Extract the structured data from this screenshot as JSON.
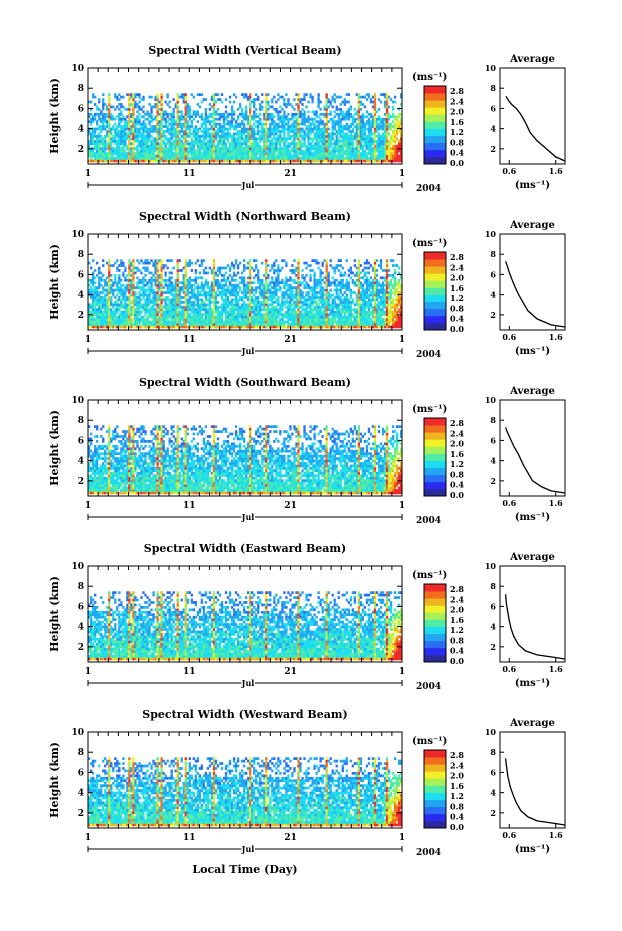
{
  "figure": {
    "xaxis_common_label": "Local Time (Day)",
    "month_label": "Jul",
    "year_label": "2004",
    "x_tick_labels": [
      "1",
      "11",
      "21",
      "1"
    ],
    "ylabel": "Height (km)",
    "y_tick_labels": [
      "2",
      "4",
      "6",
      "8",
      "10"
    ],
    "colorbar_unit": "(ms⁻¹)",
    "colorbar_tick_labels": [
      "0.0",
      "0.4",
      "0.8",
      "1.2",
      "1.6",
      "2.0",
      "2.4",
      "2.8"
    ],
    "avg_title": "Average",
    "avg_xlabel": "(ms⁻¹)",
    "avg_x_tick_labels": [
      "0.6",
      "1.6"
    ],
    "avg_y_tick_labels": [
      "2",
      "4",
      "6",
      "8",
      "10"
    ],
    "colors": {
      "colormap": [
        "#2a2a9a",
        "#2a2af0",
        "#2a6ef5",
        "#22a6f0",
        "#1edcf0",
        "#50eca6",
        "#a6f05a",
        "#f0f028",
        "#f0b41e",
        "#f06e1e",
        "#f02a2a"
      ],
      "line": "#000000"
    }
  },
  "chart_data": [
    {
      "type": "heatmap",
      "title": "Spectral Width (Vertical Beam)",
      "colorbar_range": [
        0.0,
        2.8
      ],
      "avg_profile": {
        "type": "line",
        "x": [
          1.8,
          1.6,
          1.4,
          1.2,
          1.05,
          0.95,
          0.85,
          0.75,
          0.65,
          0.58,
          0.53
        ],
        "y": [
          0.8,
          1.2,
          2.0,
          2.8,
          3.6,
          4.6,
          5.4,
          6.0,
          6.4,
          6.8,
          7.2
        ],
        "xlim": [
          0.4,
          1.8
        ],
        "ylim": [
          0.5,
          10
        ]
      }
    },
    {
      "type": "heatmap",
      "title": "Spectral Width (Northward Beam)",
      "colorbar_range": [
        0.0,
        2.8
      ],
      "avg_profile": {
        "type": "line",
        "x": [
          1.8,
          1.5,
          1.2,
          1.0,
          0.9,
          0.8,
          0.72,
          0.65,
          0.6,
          0.56,
          0.52
        ],
        "y": [
          0.8,
          1.0,
          1.6,
          2.4,
          3.2,
          4.0,
          4.8,
          5.6,
          6.2,
          6.8,
          7.3
        ],
        "xlim": [
          0.4,
          1.8
        ],
        "ylim": [
          0.5,
          10
        ]
      }
    },
    {
      "type": "heatmap",
      "title": "Spectral Width (Southward Beam)",
      "colorbar_range": [
        0.0,
        2.8
      ],
      "avg_profile": {
        "type": "line",
        "x": [
          1.8,
          1.5,
          1.3,
          1.1,
          1.0,
          0.9,
          0.8,
          0.7,
          0.62,
          0.56,
          0.52
        ],
        "y": [
          0.8,
          1.0,
          1.4,
          2.0,
          2.8,
          3.6,
          4.6,
          5.4,
          6.2,
          6.8,
          7.3
        ],
        "xlim": [
          0.4,
          1.8
        ],
        "ylim": [
          0.5,
          10
        ]
      }
    },
    {
      "type": "heatmap",
      "title": "Spectral Width (Eastward Beam)",
      "colorbar_range": [
        0.0,
        2.8
      ],
      "avg_profile": {
        "type": "line",
        "x": [
          1.8,
          1.5,
          1.2,
          0.95,
          0.8,
          0.7,
          0.64,
          0.6,
          0.57,
          0.54,
          0.52
        ],
        "y": [
          0.8,
          1.0,
          1.2,
          1.6,
          2.2,
          3.0,
          3.8,
          4.6,
          5.4,
          6.2,
          7.2
        ],
        "xlim": [
          0.4,
          1.8
        ],
        "ylim": [
          0.5,
          10
        ]
      }
    },
    {
      "type": "heatmap",
      "title": "Spectral Width (Westward Beam)",
      "colorbar_range": [
        0.0,
        2.8
      ],
      "avg_profile": {
        "type": "line",
        "x": [
          1.8,
          1.5,
          1.2,
          1.0,
          0.85,
          0.75,
          0.68,
          0.62,
          0.57,
          0.54,
          0.52
        ],
        "y": [
          0.8,
          1.0,
          1.2,
          1.6,
          2.2,
          3.0,
          3.8,
          4.6,
          5.6,
          6.6,
          7.4
        ],
        "xlim": [
          0.4,
          1.8
        ],
        "ylim": [
          0.5,
          10
        ]
      }
    }
  ]
}
